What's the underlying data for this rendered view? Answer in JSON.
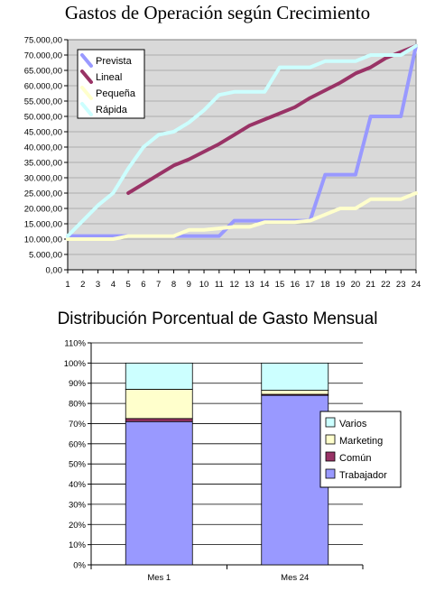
{
  "chart_data": [
    {
      "type": "line",
      "title": "Gastos de Operación según Crecimiento",
      "x": [
        1,
        2,
        3,
        4,
        5,
        6,
        7,
        8,
        9,
        10,
        11,
        12,
        13,
        14,
        15,
        16,
        17,
        18,
        19,
        20,
        21,
        22,
        23,
        24
      ],
      "ylim": [
        0,
        75000
      ],
      "yticks": [
        "0,00",
        "5.000,00",
        "10.000,00",
        "15.000,00",
        "20.000,00",
        "25.000,00",
        "30.000,00",
        "35.000,00",
        "40.000,00",
        "45.000,00",
        "50.000,00",
        "55.000,00",
        "60.000,00",
        "65.000,00",
        "70.000,00",
        "75.000,00"
      ],
      "grid": true,
      "legend_position": "top-left",
      "series": [
        {
          "name": "Prevista",
          "color": "#9999ff",
          "values": [
            11000,
            11000,
            11000,
            11000,
            11000,
            11000,
            11000,
            11000,
            11000,
            11000,
            11000,
            16000,
            16000,
            16000,
            16000,
            16000,
            16000,
            31000,
            31000,
            31000,
            50000,
            50000,
            50000,
            73000
          ]
        },
        {
          "name": "Lineal",
          "color": "#993366",
          "values": [
            null,
            null,
            null,
            null,
            25000,
            28000,
            31000,
            34000,
            36000,
            38500,
            41000,
            44000,
            47000,
            49000,
            51000,
            53000,
            56000,
            58500,
            61000,
            64000,
            66000,
            69000,
            71000,
            73000
          ]
        },
        {
          "name": "Pequeña",
          "color": "#ffffcc",
          "values": [
            10000,
            10000,
            10000,
            10000,
            11000,
            11000,
            11000,
            11000,
            13000,
            13000,
            13500,
            14000,
            14000,
            15500,
            15500,
            15500,
            16000,
            18000,
            20000,
            20000,
            23000,
            23000,
            23000,
            25000
          ]
        },
        {
          "name": "Rápida",
          "color": "#ccffff",
          "values": [
            11000,
            16000,
            21000,
            25000,
            33000,
            40000,
            44000,
            45000,
            48000,
            52000,
            57000,
            58000,
            58000,
            58000,
            66000,
            66000,
            66000,
            68000,
            68000,
            68000,
            70000,
            70000,
            70000,
            73000
          ]
        }
      ]
    },
    {
      "type": "bar",
      "stacked": true,
      "title": "Distribución Porcentual de Gasto Mensual",
      "categories": [
        "Mes 1",
        "Mes 24"
      ],
      "ylim": [
        0,
        110
      ],
      "yticks": [
        "0%",
        "10%",
        "20%",
        "30%",
        "40%",
        "50%",
        "60%",
        "70%",
        "80%",
        "90%",
        "100%",
        "110%"
      ],
      "grid": true,
      "legend_position": "right",
      "series": [
        {
          "name": "Trabajador",
          "color": "#9999ff",
          "values": [
            71,
            84
          ]
        },
        {
          "name": "Común",
          "color": "#993366",
          "values": [
            1.5,
            0.5
          ]
        },
        {
          "name": "Marketing",
          "color": "#ffffcc",
          "values": [
            14.5,
            2
          ]
        },
        {
          "name": "Varios",
          "color": "#ccffff",
          "values": [
            13,
            13.5
          ]
        }
      ]
    }
  ]
}
